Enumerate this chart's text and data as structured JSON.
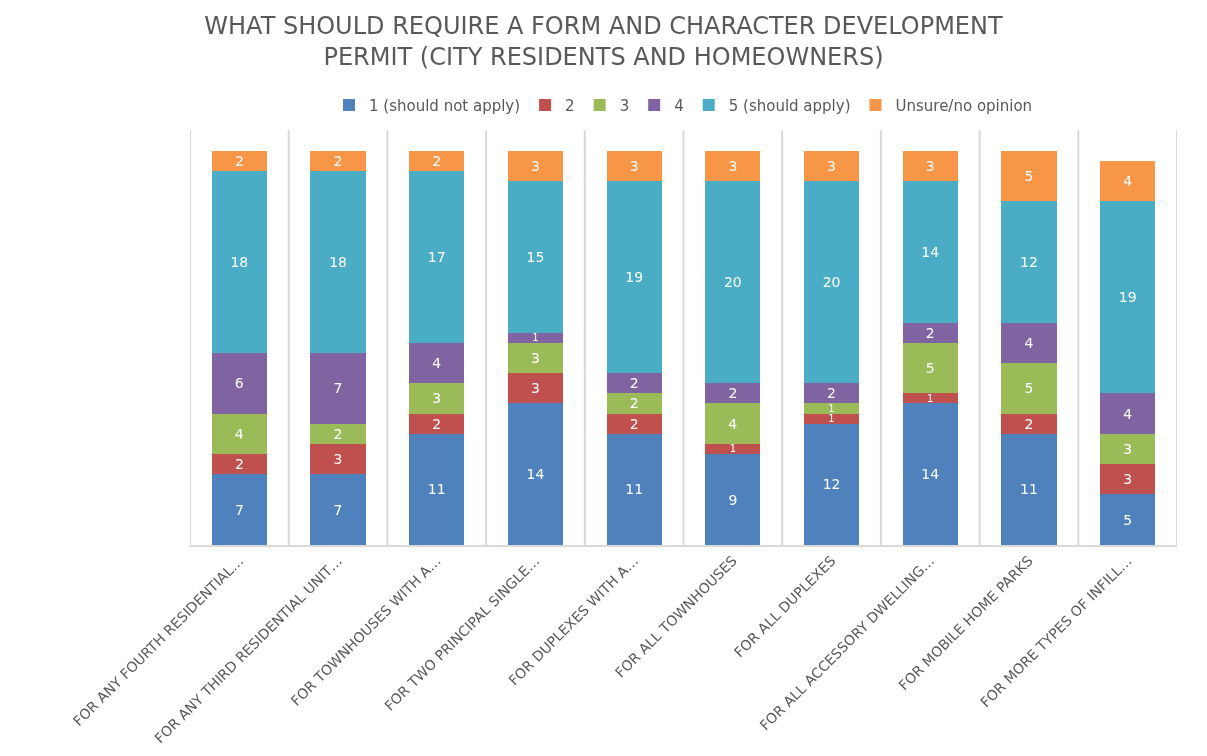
{
  "chart_data": {
    "type": "bar",
    "stacked": true,
    "title": "WHAT SHOULD REQUIRE A FORM AND CHARACTER DEVELOPMENT PERMIT (CITY RESIDENTS AND HOMEOWNERS)",
    "categories": [
      "FOR ANY FOURTH RESIDENTIAL…",
      "FOR ANY THIRD RESIDENTIAL UNIT…",
      "FOR TOWNHOUSES WITH A…",
      "FOR TWO PRINCIPAL SINGLE…",
      "FOR DUPLEXES WITH A…",
      "FOR ALL TOWNHOUSES",
      "FOR ALL DUPLEXES",
      "FOR ALL ACCESSORY DWELLING…",
      "FOR MOBILE HOME PARKS",
      "FOR MORE TYPES OF INFILL…"
    ],
    "series": [
      {
        "name": "1 (should not apply)",
        "color": "#4f81bd",
        "values": [
          7,
          7,
          11,
          14,
          11,
          9,
          12,
          14,
          11,
          5
        ]
      },
      {
        "name": "2",
        "color": "#c0504d",
        "values": [
          2,
          3,
          2,
          3,
          2,
          1,
          1,
          1,
          2,
          3
        ]
      },
      {
        "name": "3",
        "color": "#9bbb59",
        "values": [
          4,
          2,
          3,
          3,
          2,
          4,
          1,
          5,
          5,
          3
        ]
      },
      {
        "name": "4",
        "color": "#8064a2",
        "values": [
          6,
          7,
          4,
          1,
          2,
          2,
          2,
          2,
          4,
          4
        ]
      },
      {
        "name": "5 (should apply)",
        "color": "#4bacc6",
        "values": [
          18,
          18,
          17,
          15,
          19,
          20,
          20,
          14,
          12,
          19
        ]
      },
      {
        "name": "Unsure/no opinion",
        "color": "#f79646",
        "values": [
          2,
          2,
          2,
          3,
          3,
          3,
          3,
          3,
          5,
          4
        ]
      }
    ],
    "data_labels": true,
    "grid": "x",
    "legend": "top"
  }
}
